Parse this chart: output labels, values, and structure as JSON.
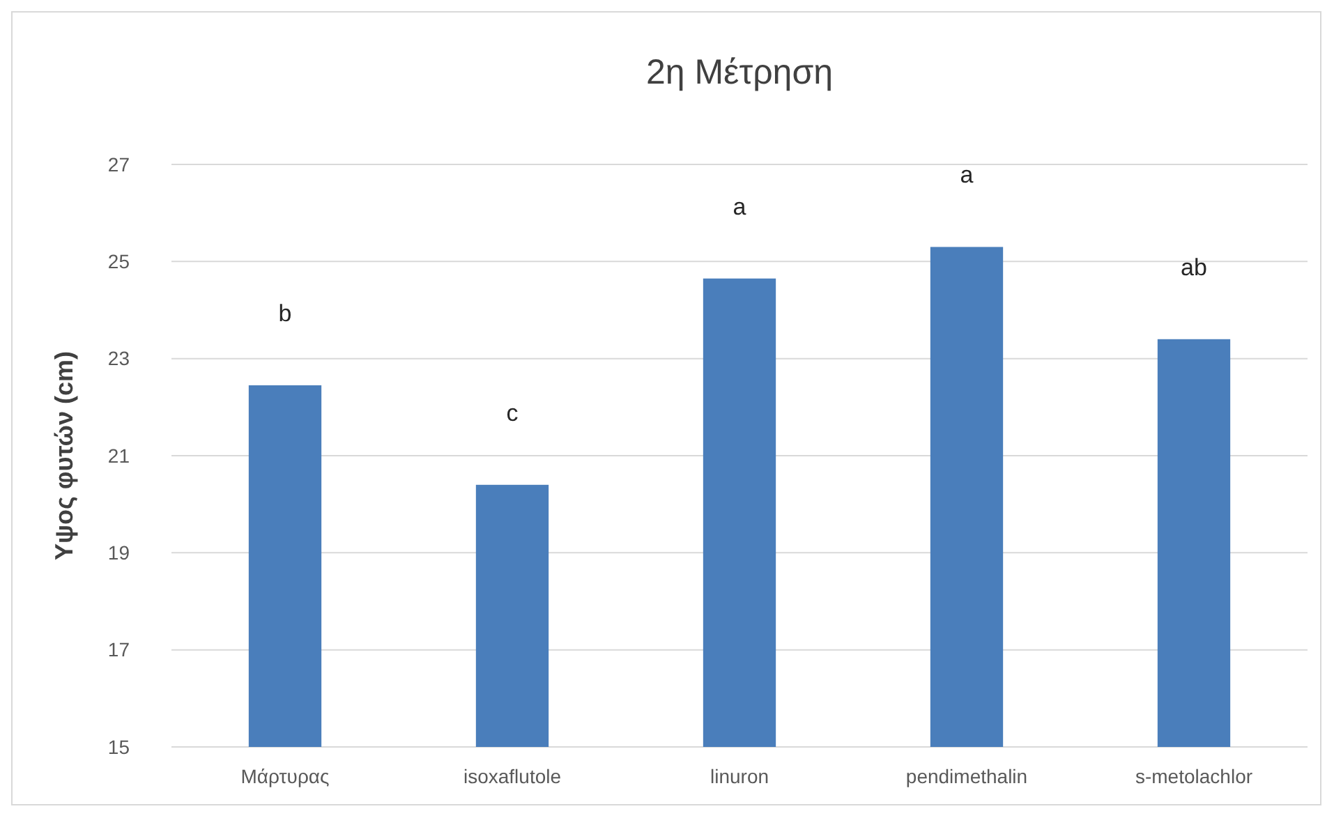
{
  "chart_data": {
    "type": "bar",
    "title": "2η Μέτρηση",
    "ylabel": "Υψος φυτών (cm)",
    "categories": [
      "Μάρτυρας",
      "isoxaflutole",
      "linuron",
      "pendimethalin",
      "s-metolachlor"
    ],
    "values": [
      22.45,
      20.4,
      24.65,
      25.3,
      23.4
    ],
    "color": "#4a7ebb",
    "ylim": [
      15,
      27
    ],
    "yticks": [
      15,
      17,
      19,
      21,
      23,
      25,
      27
    ],
    "grid": "y",
    "annotations": [
      "b",
      "c",
      "a",
      "a",
      "ab"
    ]
  }
}
